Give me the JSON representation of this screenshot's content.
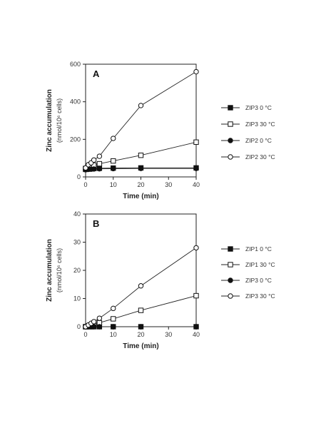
{
  "chart_data": [
    {
      "type": "line",
      "panel_label": "A",
      "xlabel": "Time (min)",
      "ylabel": "Zinc accumulation",
      "ylabel_unit": "(nmol/10⁶ cells)",
      "xlim": [
        0,
        40
      ],
      "ylim": [
        0,
        600
      ],
      "xticks": [
        "0",
        "10",
        "20",
        "30",
        "40"
      ],
      "yticks": [
        "0",
        "200",
        "400",
        "600"
      ],
      "series": [
        {
          "name": "ZIP3  0 °C",
          "marker": "filled-square",
          "x": [
            0,
            1,
            2,
            3,
            5,
            10,
            20,
            40
          ],
          "y": [
            40,
            42,
            44,
            45,
            46,
            47,
            48,
            48
          ]
        },
        {
          "name": "ZIP3  30 °C",
          "marker": "open-square",
          "x": [
            0,
            1,
            2,
            3,
            5,
            10,
            20,
            40
          ],
          "y": [
            45,
            52,
            58,
            63,
            70,
            85,
            115,
            185
          ]
        },
        {
          "name": "ZIP2  0 °C",
          "marker": "filled-circle",
          "x": [
            0,
            1,
            2,
            3,
            5,
            10,
            20,
            40
          ],
          "y": [
            38,
            40,
            41,
            42,
            43,
            44,
            45,
            45
          ]
        },
        {
          "name": "ZIP2  30 °C",
          "marker": "open-circle",
          "x": [
            0,
            1,
            2,
            3,
            5,
            10,
            20,
            40
          ],
          "y": [
            48,
            65,
            75,
            90,
            110,
            205,
            380,
            560
          ]
        }
      ]
    },
    {
      "type": "line",
      "panel_label": "B",
      "xlabel": "Time (min)",
      "ylabel": "Zinc accumulation",
      "ylabel_unit": "(nmol/10⁶ cells)",
      "xlim": [
        0,
        40
      ],
      "ylim": [
        0,
        40
      ],
      "xticks": [
        "0",
        "10",
        "20",
        "30",
        "40"
      ],
      "yticks": [
        "0",
        "10",
        "20",
        "30",
        "40"
      ],
      "series": [
        {
          "name": "ZIP1  0 °C",
          "marker": "filled-square",
          "x": [
            0,
            1,
            2,
            3,
            5,
            10,
            20,
            40
          ],
          "y": [
            0,
            0,
            0,
            0,
            0,
            0,
            0,
            0
          ]
        },
        {
          "name": "ZIP1  30 °C",
          "marker": "open-square",
          "x": [
            0,
            1,
            2,
            3,
            5,
            10,
            20,
            40
          ],
          "y": [
            0,
            0.3,
            0.6,
            0.9,
            1.4,
            2.8,
            5.8,
            11
          ]
        },
        {
          "name": "ZIP3  0 °C",
          "marker": "filled-circle",
          "x": [
            0,
            1,
            2,
            3,
            5,
            10,
            20,
            40
          ],
          "y": [
            0,
            0,
            0,
            0,
            0,
            0,
            0,
            0
          ]
        },
        {
          "name": "ZIP3  30 °C",
          "marker": "open-circle",
          "x": [
            0,
            1,
            2,
            3,
            5,
            10,
            20,
            40
          ],
          "y": [
            0,
            0.6,
            1.2,
            1.8,
            3,
            6.5,
            14.5,
            28
          ]
        }
      ]
    }
  ]
}
